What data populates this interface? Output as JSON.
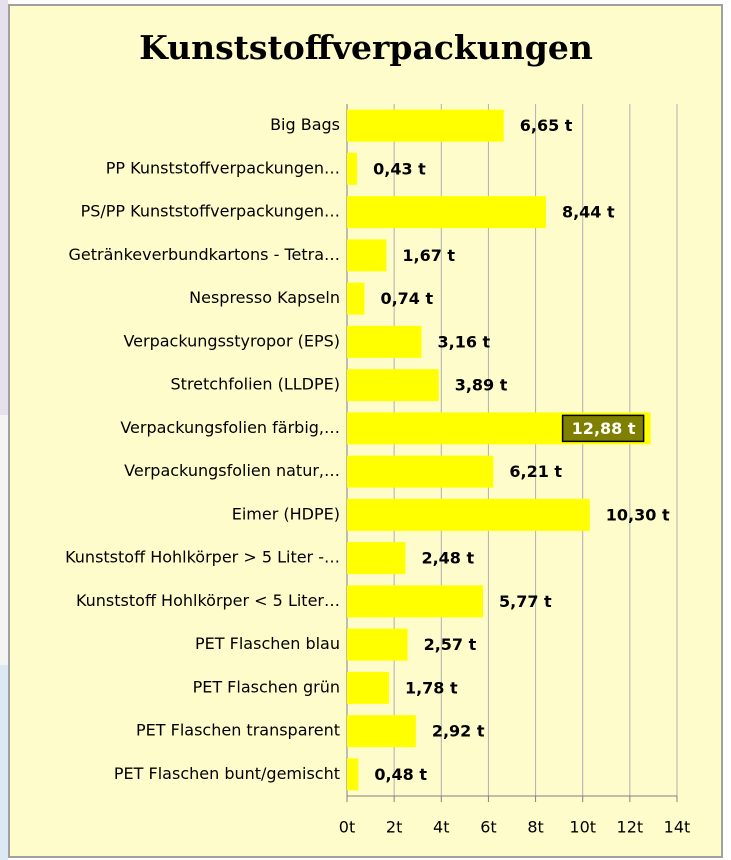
{
  "chart_data": {
    "type": "hbar",
    "title": "Kunststoffverpackungen",
    "categories": [
      "Big Bags",
      "PP Kunststoffverpackungen…",
      "PS/PP Kunststoffverpackungen…",
      "Getränkeverbundkartons - Tetra…",
      "Nespresso Kapseln",
      "Verpackungsstyropor (EPS)",
      "Stretchfolien (LLDPE)",
      "Verpackungsfolien färbig,…",
      "Verpackungsfolien natur,…",
      "Eimer (HDPE)",
      "Kunststoff Hohlkörper > 5 Liter -…",
      "Kunststoff Hohlkörper < 5 Liter…",
      "PET Flaschen blau",
      "PET Flaschen grün",
      "PET Flaschen transparent",
      "PET Flaschen bunt/gemischt"
    ],
    "values": [
      6.65,
      0.43,
      8.44,
      1.67,
      0.74,
      3.16,
      3.89,
      12.88,
      6.21,
      10.3,
      2.48,
      5.77,
      2.57,
      1.78,
      2.92,
      0.48
    ],
    "value_labels": [
      "6,65 t",
      "0,43 t",
      "8,44 t",
      "1,67 t",
      "0,74 t",
      "3,16 t",
      "3,89 t",
      "12,88 t",
      "6,21 t",
      "10,30 t",
      "2,48 t",
      "5,77 t",
      "2,57 t",
      "1,78 t",
      "2,92 t",
      "0,48 t"
    ],
    "color": "#ffff00",
    "highlight": 7,
    "highlight_color": "#808000",
    "xlim": [
      0,
      14
    ],
    "xticks": [
      {
        "value": 0,
        "label": "0t"
      },
      {
        "value": 2,
        "label": "2t"
      },
      {
        "value": 4,
        "label": "4t"
      },
      {
        "value": 6,
        "label": "6t"
      },
      {
        "value": 8,
        "label": "8t"
      },
      {
        "value": 10,
        "label": "10t"
      },
      {
        "value": 12,
        "label": "12t"
      },
      {
        "value": 14,
        "label": "14t"
      }
    ],
    "grid": true
  }
}
